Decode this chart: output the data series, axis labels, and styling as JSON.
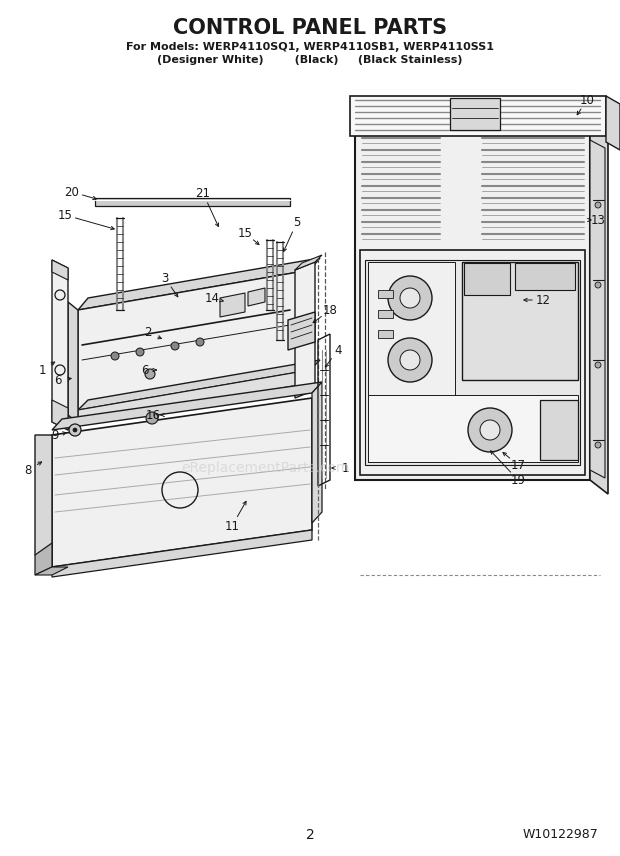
{
  "title": "CONTROL PANEL PARTS",
  "subtitle_line1": "For Models: WERP4110SQ1, WERP4110SB1, WERP4110SS1",
  "subtitle_line2": "(Designer White)        (Black)     (Black Stainless)",
  "page_number": "2",
  "part_number": "W10122987",
  "bg": "#ffffff",
  "lc": "#1a1a1a",
  "watermark": "eReplacementParts.com",
  "fig_w": 6.2,
  "fig_h": 8.56,
  "dpi": 100
}
